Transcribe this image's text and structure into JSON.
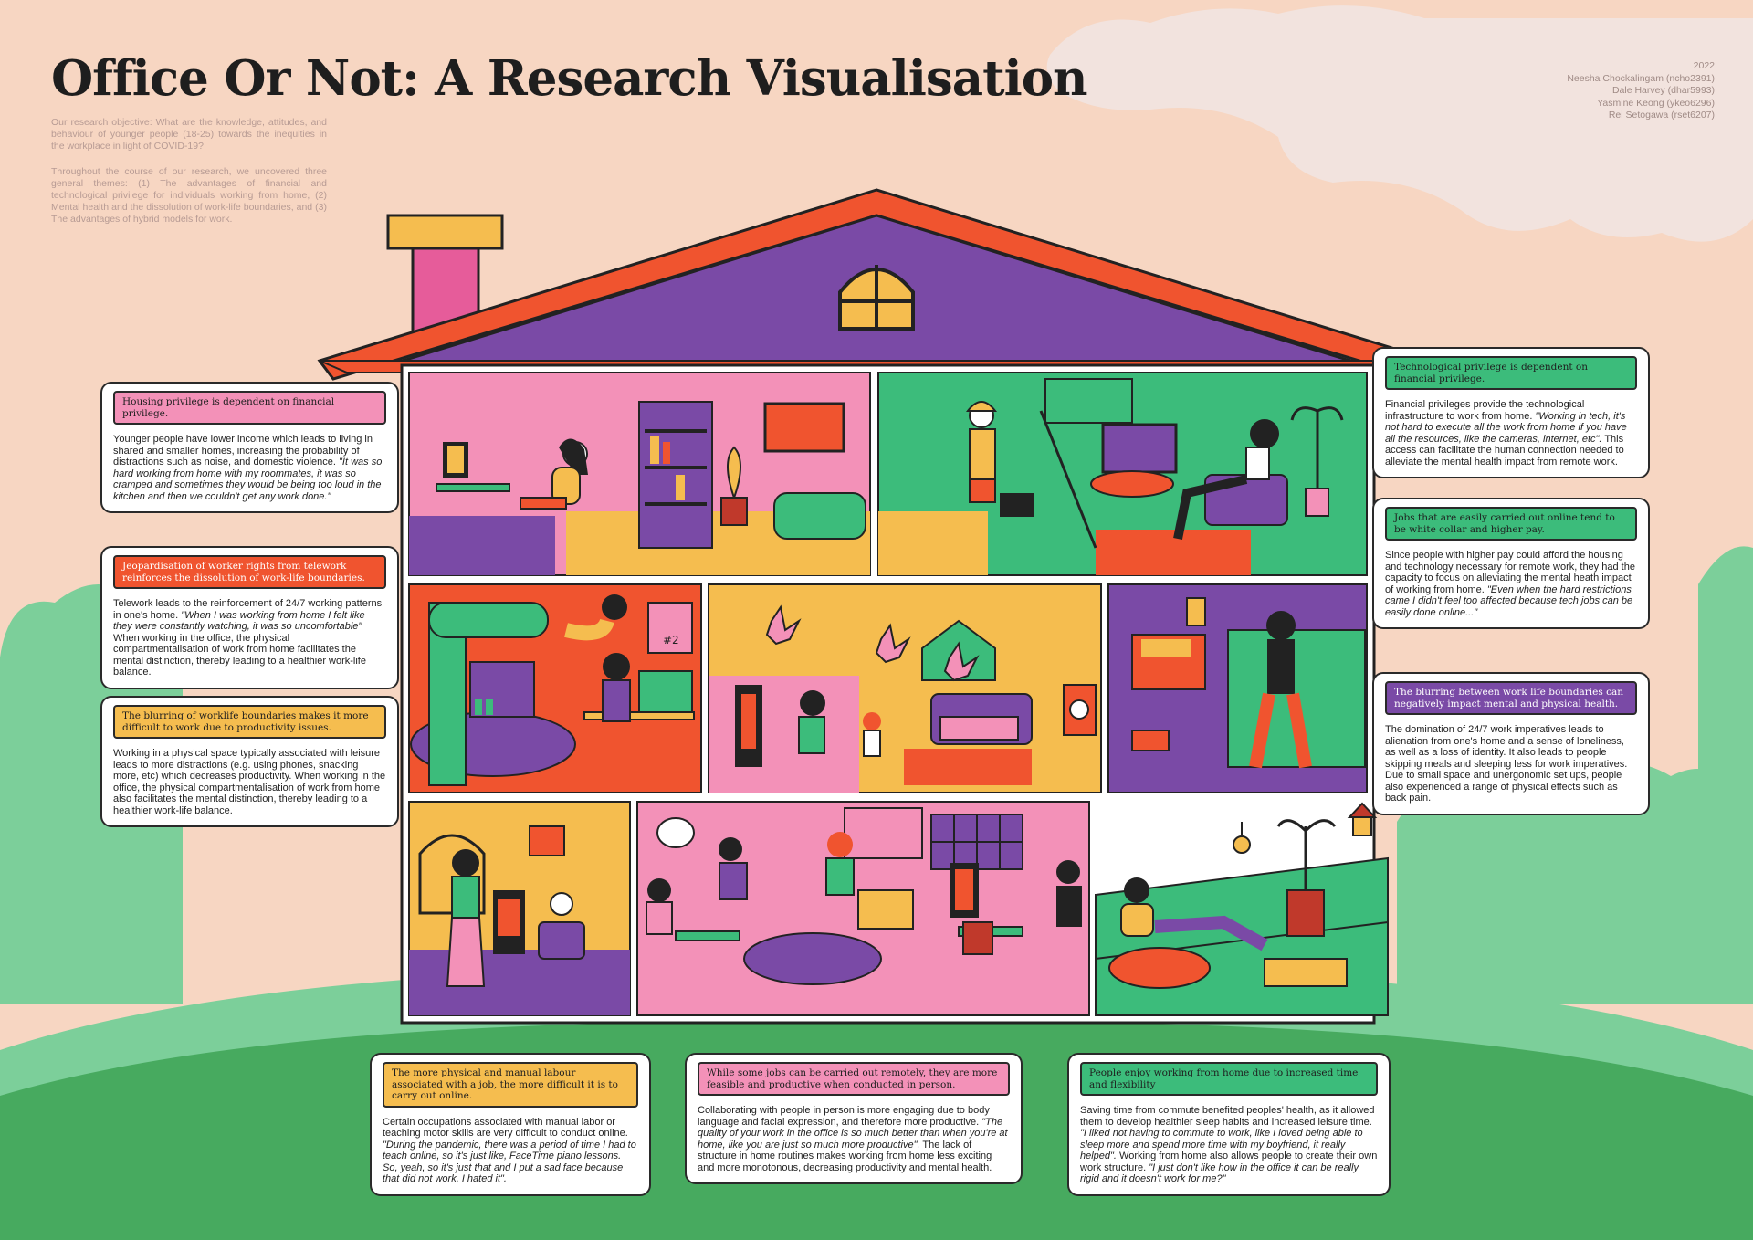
{
  "title": "Office Or Not: A Research Visualisation",
  "intro": {
    "paragraph1": "Our research objective: What are the knowledge, attitudes, and behaviour of younger people (18-25) towards the inequities in the workplace in light of COVID-19?",
    "paragraph2": "Throughout the course of our research, we uncovered three general themes: (1) The advantages of financial and technological privilege for individuals working from home, (2) Mental health and the dissolution of work-life boundaries, and (3) The advantages of hybrid models for work."
  },
  "authors": {
    "year": "2022",
    "names": [
      "Neesha Chockalingam (ncho2391)",
      "Dale Harvey (dhar5993)",
      "Yasmine Keong (ykeo6296)",
      "Rei Setogawa (rset6207)"
    ]
  },
  "colors": {
    "background": "#f7d6c2",
    "roof": "#f0542f",
    "attic": "#7a4aa6",
    "pink": "#f391b8",
    "yellow": "#f5bd4f",
    "green": "#3cbc7b",
    "purple": "#7a4aa6",
    "grass_light": "#7ccf9a",
    "grass_dark": "#47aa5f"
  },
  "cards": {
    "housing": {
      "heading": "Housing privilege is dependent on financial privilege.",
      "body": "Younger people have lower income which leads to living in shared and smaller homes, increasing the probability of distractions such as noise, and domestic violence. ",
      "quote": "\"It was so hard working from home with my roommates, it was so cramped and sometimes they would be being too loud in the kitchen and then we couldn't get any work done.\""
    },
    "rights": {
      "heading": "Jeopardisation of worker rights from telework reinforces the dissolution of work-life boundaries.",
      "body": "Telework leads to the reinforcement of 24/7 working patterns in one's home. ",
      "quote": "\"When I was working from home I felt like they were constantly watching, it was so uncomfortable\"",
      "body2": " When working in the office, the physical compartmentalisation of work from home facilitates the mental distinction, thereby leading to a healthier work-life balance."
    },
    "blurring": {
      "heading": "The blurring of worklife boundaries makes it more difficult to work due to productivity issues.",
      "body": "Working in a physical space typically associated with leisure leads to more distractions (e.g. using phones, snacking more, etc) which decreases productivity. When working in the office, the physical compartmentalisation of work from home also facilitates the mental distinction, thereby leading to a healthier work-life balance."
    },
    "tech": {
      "heading": "Technological privilege is dependent on financial privilege.",
      "body": "Financial privileges provide the technological infrastructure to work from home. ",
      "quote": "\"Working in tech, it's not hard to execute all the work from home if you have all the resources, like the cameras, internet, etc\".",
      "body2": " This access can facilitate the human connection needed to alleviate the mental health impact from remote work."
    },
    "jobs": {
      "heading": "Jobs that are easily carried out online tend to be white collar and higher pay.",
      "body": "Since people with higher pay could afford the housing and technology necessary for remote work, they had the capacity to focus on alleviating the mental heath impact of working from home. ",
      "quote": "\"Even when the hard restrictions came I didn't feel too affected because tech jobs can be easily done online...\""
    },
    "boundaries": {
      "heading": "The blurring between work life boundaries can negatively impact mental and physical health.",
      "body": "The domination of 24/7 work imperatives leads to alienation from one's home and a sense of loneliness, as well as a loss of identity. It also leads to people skipping meals and sleeping less for work imperatives. Due to small space and unergonomic set ups, people also experienced a range of physical effects such as back pain."
    },
    "physical": {
      "heading": "The more physical and manual labour associated with a job, the more difficult it is to carry out online.",
      "body": "Certain occupations associated with manual labor or teaching motor skills are very difficult to conduct online. ",
      "quote": "\"During the pandemic, there was a period of time I had to teach online, so it's just like, FaceTime piano lessons. So, yeah, so it's just that and I put a sad face because that did not work, I hated it\"."
    },
    "inperson": {
      "heading": "While some jobs can be carried out remotely, they are more feasible and productive when conducted in person.",
      "body": "Collaborating with people in person is more engaging due to body language and facial expression, and therefore more productive. ",
      "quote": "\"The quality of your work in the office is so much better than when you're at home, like you are just so much more productive\".",
      "body2": " The lack of structure in home routines makes working from home less exciting and more monotonous, decreasing productivity and mental health."
    },
    "enjoy": {
      "heading": "People enjoy working from home due to increased time and flexibility",
      "body": "Saving time from commute benefited peoples' health, as it allowed them to develop healthier sleep habits and increased leisure time. ",
      "quote": "\"I liked not having to commute to work, like I loved being able to sleep more and spend more time with my boyfriend, it really helped\".",
      "body2": " Working from home also allows people to create their own work structure. ",
      "quote2": "\"I just don't like how in the office it can be really rigid and it doesn't work for me?\""
    }
  },
  "scene_labels": {
    "trophy_label": "#2"
  }
}
